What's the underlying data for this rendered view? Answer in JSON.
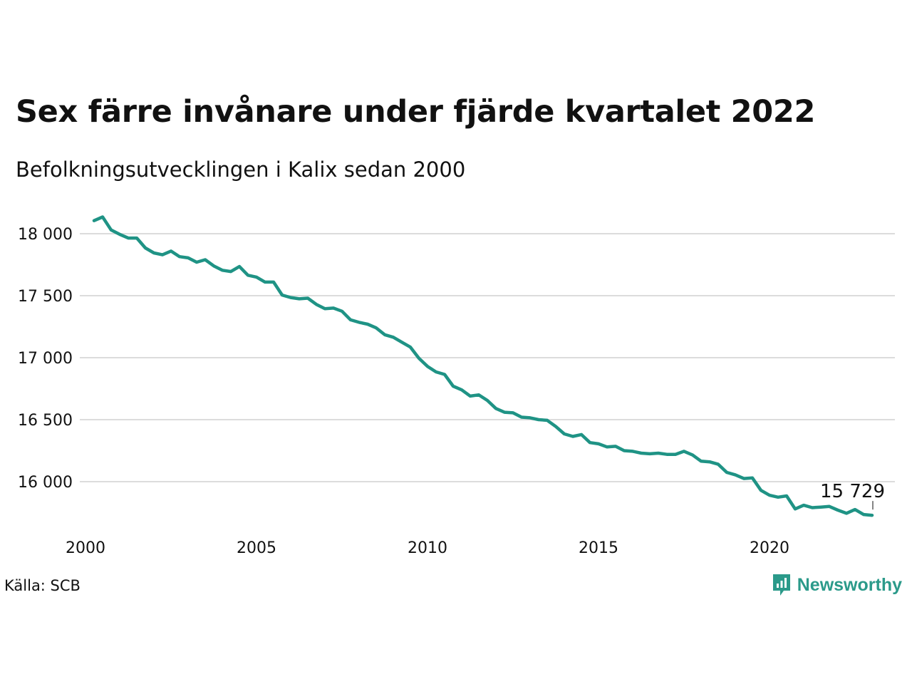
{
  "title": "Sex färre invånare under fjärde kvartalet 2022",
  "subtitle": "Befolkningsutvecklingen i Kalix sedan 2000",
  "source": "Källa: SCB",
  "brand": {
    "name": "Newsworthy",
    "icon": "newsworthy-logo-icon",
    "color": "#2b9a8a"
  },
  "colors": {
    "line": "#1f9385",
    "grid": "#dcdcdc"
  },
  "chart_data": {
    "type": "line",
    "title": "Sex färre invånare under fjärde kvartalet 2022",
    "subtitle": "Befolkningsutvecklingen i Kalix sedan 2000",
    "xlim": [
      2000,
      2023.5
    ],
    "ylim": [
      15600,
      18150
    ],
    "grid": true,
    "y_ticks": [
      16000,
      16500,
      17000,
      17500,
      18000
    ],
    "y_tick_labels": [
      "16 000",
      "16 500",
      "17 000",
      "17 500",
      "18 000"
    ],
    "x_ticks": [
      2000,
      2005,
      2010,
      2015,
      2020
    ],
    "x_tick_labels": [
      "2000",
      "2005",
      "2010",
      "2015",
      "2020"
    ],
    "end_label": "15 729",
    "series": [
      {
        "x": [
          2000.25,
          2000.5,
          2000.75,
          2001.0,
          2001.25,
          2001.5,
          2001.75,
          2002.0,
          2002.25,
          2002.5,
          2002.75,
          2003.0,
          2003.25,
          2003.5,
          2003.75,
          2004.0,
          2004.25,
          2004.5,
          2004.75,
          2005.0,
          2005.25,
          2005.5,
          2005.75,
          2006.0,
          2006.25,
          2006.5,
          2006.75,
          2007.0,
          2007.25,
          2007.5,
          2007.75,
          2008.0,
          2008.25,
          2008.5,
          2008.75,
          2009.0,
          2009.25,
          2009.5,
          2009.75,
          2010.0,
          2010.25,
          2010.5,
          2010.75,
          2011.0,
          2011.25,
          2011.5,
          2011.75,
          2012.0,
          2012.25,
          2012.5,
          2012.75,
          2013.0,
          2013.25,
          2013.5,
          2013.75,
          2014.0,
          2014.25,
          2014.5,
          2014.75,
          2015.0,
          2015.25,
          2015.5,
          2015.75,
          2016.0,
          2016.25,
          2016.5,
          2016.75,
          2017.0,
          2017.25,
          2017.5,
          2017.75,
          2018.0,
          2018.25,
          2018.5,
          2018.75,
          2019.0,
          2019.25,
          2019.5,
          2019.75,
          2020.0,
          2020.25,
          2020.5,
          2020.75,
          2021.0,
          2021.25,
          2021.5,
          2021.75,
          2022.0,
          2022.25,
          2022.5,
          2022.75,
          2023.0
        ],
        "values": [
          18105,
          18135,
          18030,
          17995,
          17965,
          17965,
          17885,
          17845,
          17830,
          17860,
          17815,
          17805,
          17770,
          17790,
          17740,
          17705,
          17695,
          17735,
          17665,
          17650,
          17610,
          17610,
          17505,
          17485,
          17475,
          17480,
          17430,
          17395,
          17400,
          17375,
          17305,
          17285,
          17270,
          17240,
          17185,
          17165,
          17125,
          17085,
          16995,
          16930,
          16885,
          16865,
          16770,
          16740,
          16690,
          16700,
          16655,
          16590,
          16560,
          16555,
          16520,
          16515,
          16500,
          16495,
          16445,
          16385,
          16365,
          16380,
          16315,
          16305,
          16280,
          16285,
          16250,
          16245,
          16230,
          16225,
          16230,
          16220,
          16220,
          16245,
          16215,
          16165,
          16160,
          16140,
          16075,
          16055,
          16025,
          16030,
          15930,
          15890,
          15875,
          15885,
          15780,
          15810,
          15790,
          15795,
          15800,
          15770,
          15745,
          15775,
          15735,
          15729
        ]
      }
    ]
  }
}
